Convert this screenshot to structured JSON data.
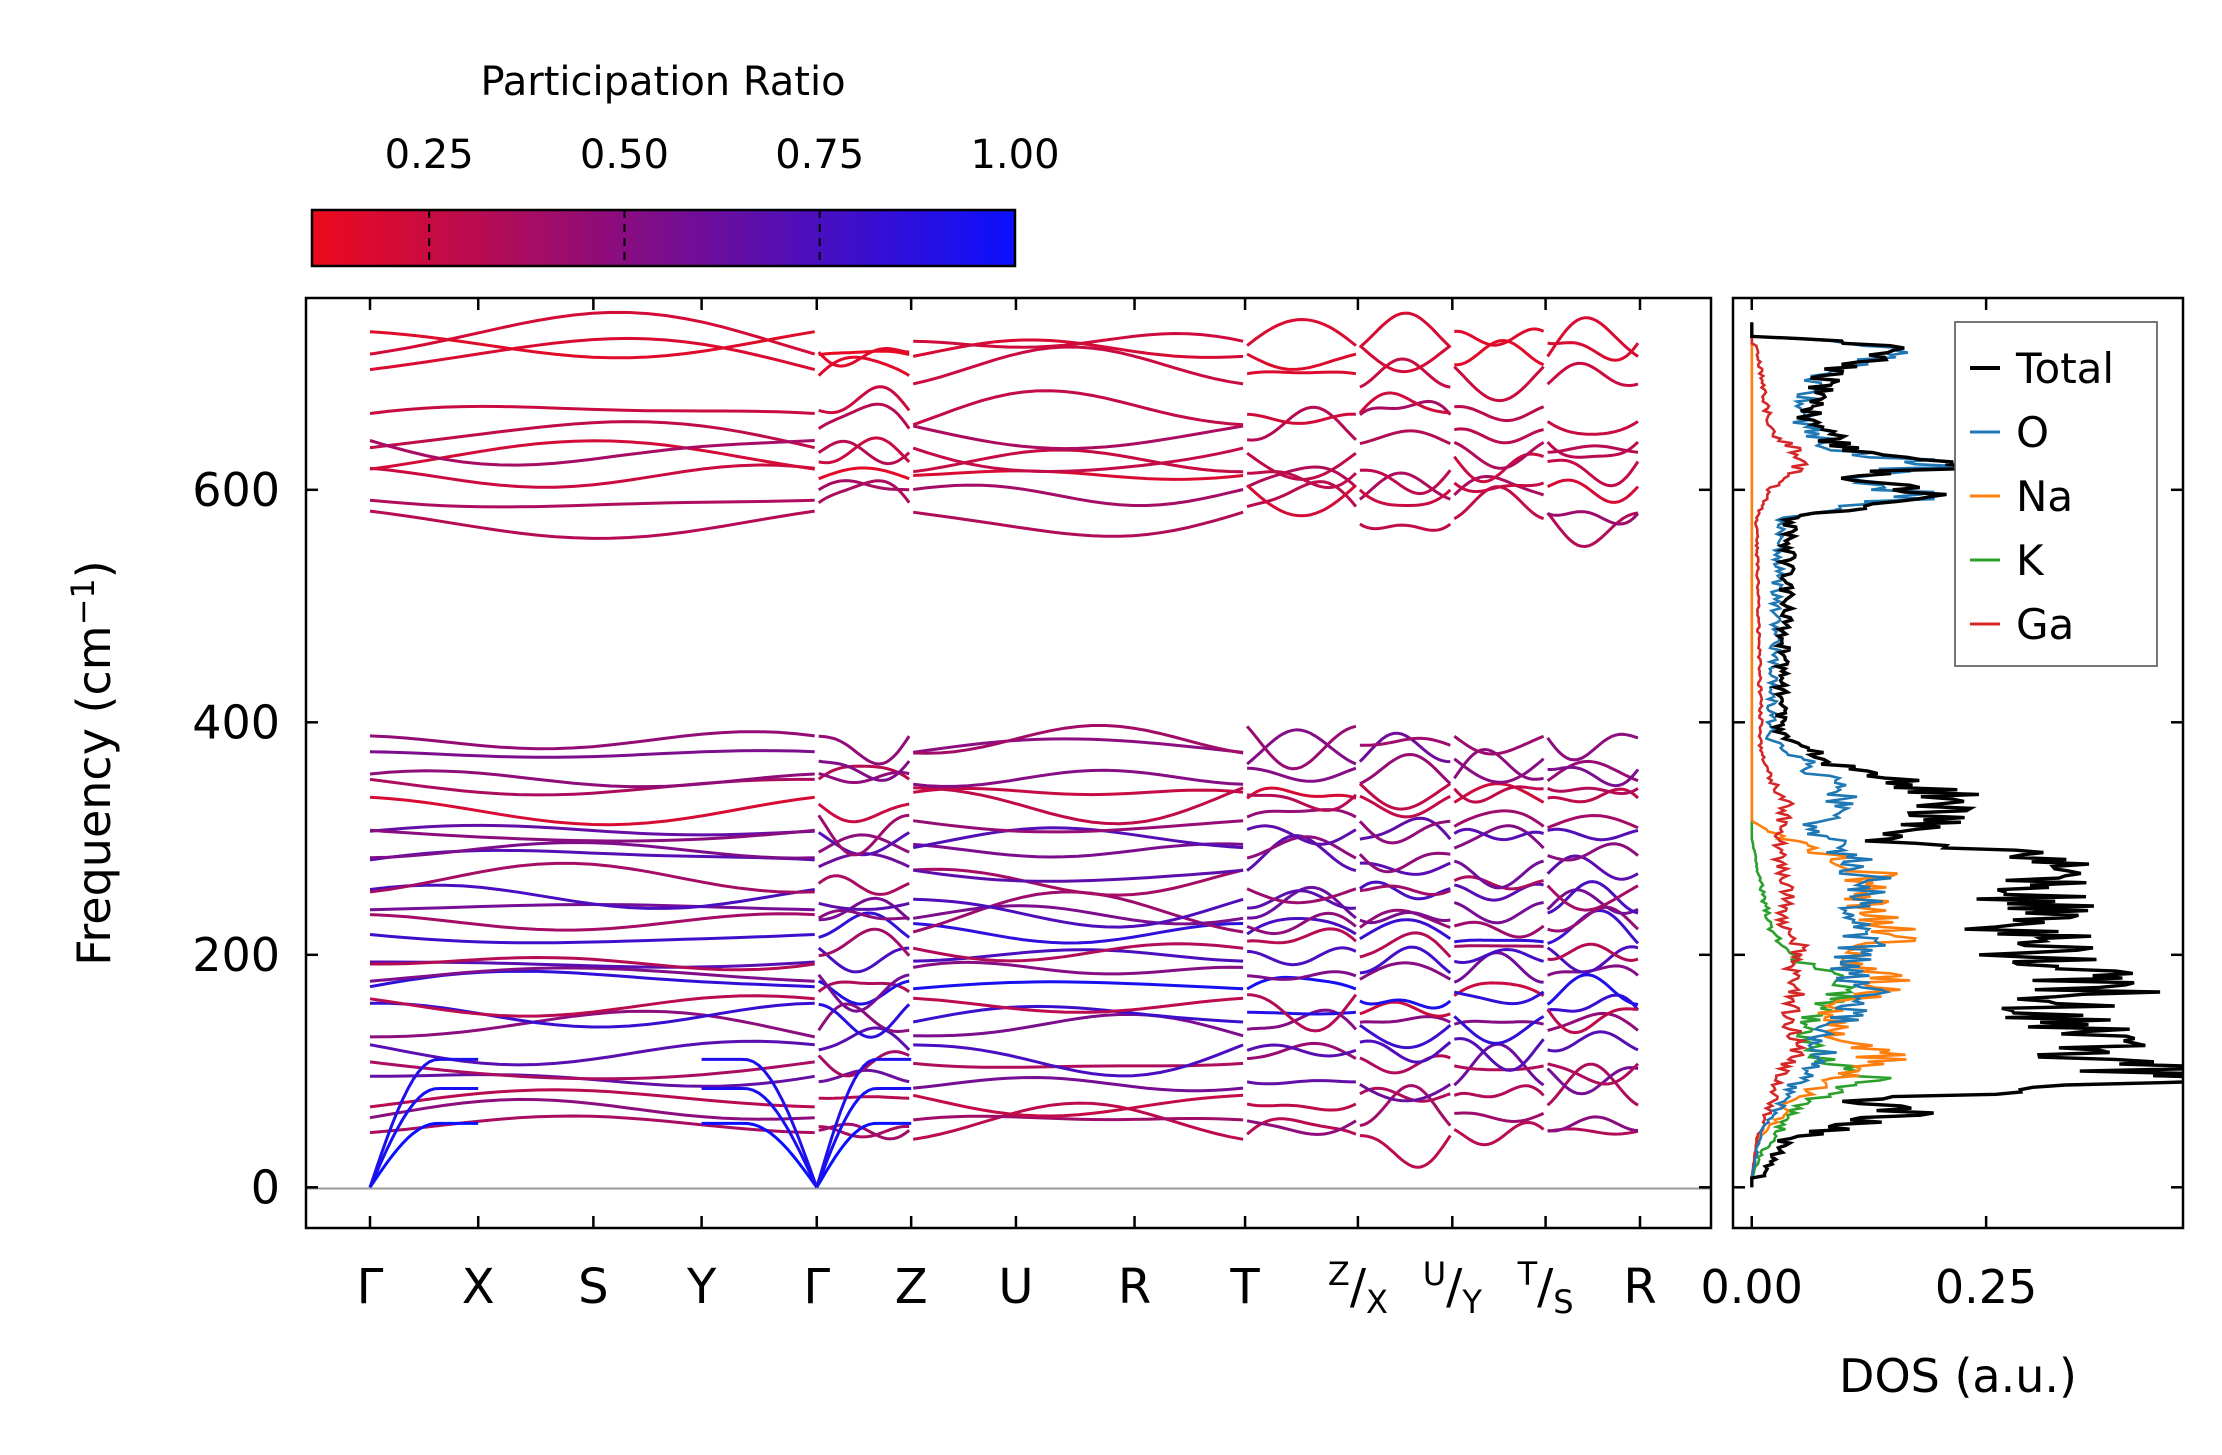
{
  "colors": {
    "pr_low": "#ee0a1c",
    "pr_high": "#0a10ff",
    "total": "#000000",
    "O": "#1f77b4",
    "Na": "#ff7f0e",
    "K": "#2ca02c",
    "Ga": "#d62728"
  },
  "colorbar": {
    "label": "Participation Ratio",
    "range": [
      0.1,
      1.0
    ],
    "ticks": [
      {
        "value": 0.25,
        "label": "0.25"
      },
      {
        "value": 0.5,
        "label": "0.50"
      },
      {
        "value": 0.75,
        "label": "0.75"
      },
      {
        "value": 1.0,
        "label": "1.00"
      }
    ]
  },
  "chart_data": [
    {
      "type": "line",
      "title": "",
      "ylabel_main": "Frequency (cm",
      "ylabel_sup": "−1",
      "ylabel_end": ")",
      "ylim": [
        -35,
        765
      ],
      "yticks": [
        {
          "value": 0,
          "label": "0"
        },
        {
          "value": 200,
          "label": "200"
        },
        {
          "value": 400,
          "label": "400"
        },
        {
          "value": 600,
          "label": "600"
        }
      ],
      "kpoints": [
        {
          "main": "Γ",
          "sup": "",
          "sub": ""
        },
        {
          "main": "X",
          "sup": "",
          "sub": ""
        },
        {
          "main": "S",
          "sup": "",
          "sub": ""
        },
        {
          "main": "Y",
          "sup": "",
          "sub": ""
        },
        {
          "main": "Γ",
          "sup": "",
          "sub": ""
        },
        {
          "main": "Z",
          "sup": "",
          "sub": ""
        },
        {
          "main": "U",
          "sup": "",
          "sub": ""
        },
        {
          "main": "R",
          "sup": "",
          "sub": ""
        },
        {
          "main": "T",
          "sup": "",
          "sub": ""
        },
        {
          "main": "/",
          "sup": "Z",
          "sub": "X"
        },
        {
          "main": "/",
          "sup": "U",
          "sub": "Y"
        },
        {
          "main": "/",
          "sup": "T",
          "sub": "S"
        },
        {
          "main": "R",
          "sup": "",
          "sub": ""
        }
      ],
      "kpath_positions": [
        0,
        0.94,
        1.94,
        2.88,
        3.88,
        4.7,
        5.61,
        6.64,
        7.6,
        8.58,
        9.4,
        10.21,
        11.03
      ],
      "segments": [
        [
          0,
          4
        ],
        [
          4,
          5
        ],
        [
          5,
          8
        ],
        [
          8,
          9
        ],
        [
          9,
          10
        ],
        [
          10,
          11
        ],
        [
          11,
          12
        ]
      ],
      "acoustic_zero_at": [
        0,
        4
      ],
      "optical_band_anchors": [
        {
          "freq": 45,
          "pr": 0.35
        },
        {
          "freq": 60,
          "pr": 0.45
        },
        {
          "freq": 75,
          "pr": 0.3
        },
        {
          "freq": 95,
          "pr": 0.6
        },
        {
          "freq": 110,
          "pr": 0.4
        },
        {
          "freq": 120,
          "pr": 0.7
        },
        {
          "freq": 135,
          "pr": 0.5
        },
        {
          "freq": 145,
          "pr": 0.85
        },
        {
          "freq": 160,
          "pr": 0.3
        },
        {
          "freq": 170,
          "pr": 0.9
        },
        {
          "freq": 182,
          "pr": 0.55
        },
        {
          "freq": 195,
          "pr": 0.75
        },
        {
          "freq": 205,
          "pr": 0.35
        },
        {
          "freq": 215,
          "pr": 0.8
        },
        {
          "freq": 225,
          "pr": 0.45
        },
        {
          "freq": 238,
          "pr": 0.6
        },
        {
          "freq": 250,
          "pr": 0.7
        },
        {
          "freq": 262,
          "pr": 0.4
        },
        {
          "freq": 275,
          "pr": 0.65
        },
        {
          "freq": 288,
          "pr": 0.5
        },
        {
          "freq": 300,
          "pr": 0.7
        },
        {
          "freq": 310,
          "pr": 0.45
        },
        {
          "freq": 330,
          "pr": 0.25
        },
        {
          "freq": 345,
          "pr": 0.3
        },
        {
          "freq": 355,
          "pr": 0.5
        },
        {
          "freq": 370,
          "pr": 0.55
        },
        {
          "freq": 385,
          "pr": 0.45
        },
        {
          "freq": 580,
          "pr": 0.3
        },
        {
          "freq": 595,
          "pr": 0.4
        },
        {
          "freq": 610,
          "pr": 0.2
        },
        {
          "freq": 622,
          "pr": 0.25
        },
        {
          "freq": 635,
          "pr": 0.3
        },
        {
          "freq": 650,
          "pr": 0.35
        },
        {
          "freq": 665,
          "pr": 0.25
        },
        {
          "freq": 700,
          "pr": 0.2
        },
        {
          "freq": 720,
          "pr": 0.15
        },
        {
          "freq": 728,
          "pr": 0.18
        }
      ]
    },
    {
      "type": "line",
      "xlabel": "DOS (a.u.)",
      "xlim": [
        -0.02,
        0.46
      ],
      "ylim": [
        -35,
        765
      ],
      "xticks": [
        {
          "value": 0.0,
          "label": "0.00"
        },
        {
          "value": 0.25,
          "label": "0.25"
        }
      ],
      "legend_position": "top-right",
      "series": [
        {
          "name": "Total",
          "key": "total",
          "peaks": [
            [
              8,
              0.01
            ],
            [
              40,
              0.035
            ],
            [
              66,
              0.17
            ],
            [
              75,
              0.1
            ],
            [
              90,
              0.45
            ],
            [
              108,
              0.38
            ],
            [
              130,
              0.36
            ],
            [
              150,
              0.3
            ],
            [
              175,
              0.38
            ],
            [
              200,
              0.29
            ],
            [
              210,
              0.32
            ],
            [
              225,
              0.27
            ],
            [
              245,
              0.31
            ],
            [
              265,
              0.29
            ],
            [
              285,
              0.3
            ],
            [
              300,
              0.13
            ],
            [
              318,
              0.2
            ],
            [
              335,
              0.22
            ],
            [
              360,
              0.1
            ],
            [
              380,
              0.06
            ],
            [
              390,
              0.03
            ],
            [
              575,
              0.04
            ],
            [
              595,
              0.2
            ],
            [
              610,
              0.1
            ],
            [
              622,
              0.22
            ],
            [
              635,
              0.1
            ],
            [
              660,
              0.06
            ],
            [
              700,
              0.08
            ],
            [
              722,
              0.17
            ],
            [
              732,
              0.03
            ]
          ]
        },
        {
          "name": "O",
          "key": "O",
          "peaks": [
            [
              8,
              0.0
            ],
            [
              50,
              0.01
            ],
            [
              90,
              0.05
            ],
            [
              110,
              0.08
            ],
            [
              130,
              0.07
            ],
            [
              150,
              0.11
            ],
            [
              170,
              0.12
            ],
            [
              190,
              0.1
            ],
            [
              210,
              0.12
            ],
            [
              230,
              0.1
            ],
            [
              250,
              0.13
            ],
            [
              270,
              0.12
            ],
            [
              290,
              0.1
            ],
            [
              310,
              0.06
            ],
            [
              330,
              0.1
            ],
            [
              350,
              0.08
            ],
            [
              370,
              0.05
            ],
            [
              385,
              0.02
            ],
            [
              575,
              0.03
            ],
            [
              595,
              0.19
            ],
            [
              610,
              0.09
            ],
            [
              622,
              0.21
            ],
            [
              635,
              0.09
            ],
            [
              660,
              0.05
            ],
            [
              700,
              0.07
            ],
            [
              722,
              0.16
            ],
            [
              732,
              0.03
            ]
          ]
        },
        {
          "name": "Na",
          "key": "Na",
          "peaks": [
            [
              8,
              0.0
            ],
            [
              40,
              0.005
            ],
            [
              70,
              0.04
            ],
            [
              90,
              0.08
            ],
            [
              115,
              0.15
            ],
            [
              130,
              0.09
            ],
            [
              150,
              0.08
            ],
            [
              175,
              0.15
            ],
            [
              195,
              0.1
            ],
            [
              215,
              0.16
            ],
            [
              235,
              0.13
            ],
            [
              255,
              0.12
            ],
            [
              270,
              0.13
            ],
            [
              290,
              0.07
            ],
            [
              305,
              0.02
            ],
            [
              315,
              0.0
            ]
          ]
        },
        {
          "name": "K",
          "key": "K",
          "peaks": [
            [
              8,
              0.0
            ],
            [
              30,
              0.01
            ],
            [
              50,
              0.03
            ],
            [
              70,
              0.05
            ],
            [
              92,
              0.13
            ],
            [
              108,
              0.08
            ],
            [
              125,
              0.06
            ],
            [
              145,
              0.06
            ],
            [
              165,
              0.1
            ],
            [
              185,
              0.08
            ],
            [
              200,
              0.04
            ],
            [
              220,
              0.02
            ],
            [
              260,
              0.01
            ],
            [
              300,
              0.0
            ]
          ]
        },
        {
          "name": "Ga",
          "key": "Ga",
          "peaks": [
            [
              8,
              0.0
            ],
            [
              40,
              0.005
            ],
            [
              70,
              0.02
            ],
            [
              95,
              0.03
            ],
            [
              120,
              0.05
            ],
            [
              145,
              0.04
            ],
            [
              170,
              0.05
            ],
            [
              190,
              0.04
            ],
            [
              210,
              0.05
            ],
            [
              230,
              0.03
            ],
            [
              255,
              0.04
            ],
            [
              280,
              0.03
            ],
            [
              310,
              0.03
            ],
            [
              330,
              0.04
            ],
            [
              350,
              0.02
            ],
            [
              380,
              0.01
            ],
            [
              575,
              0.005
            ],
            [
              600,
              0.02
            ],
            [
              625,
              0.06
            ],
            [
              650,
              0.02
            ],
            [
              700,
              0.01
            ],
            [
              725,
              0.005
            ]
          ]
        }
      ]
    }
  ]
}
